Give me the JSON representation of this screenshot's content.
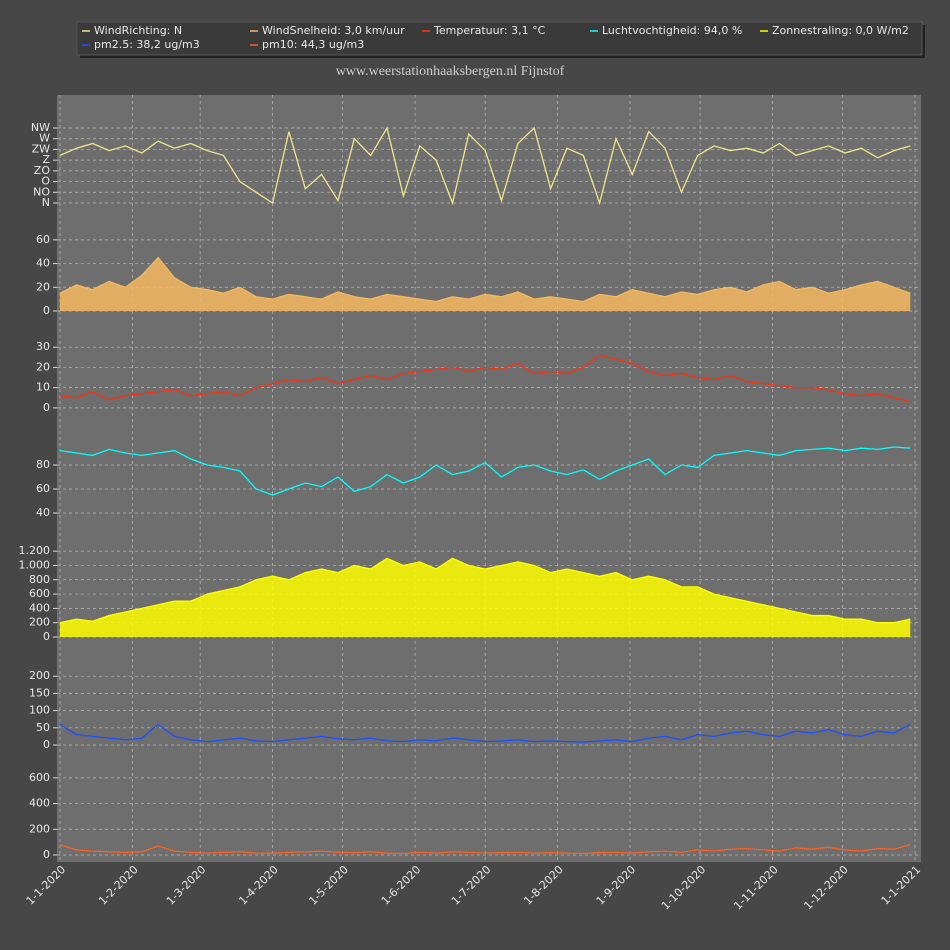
{
  "chart_data": {
    "type": "line",
    "title": "www.weerstationhaaksbergen.nl Fijnstof",
    "x": [
      "2020-01-01",
      "2020-01-08",
      "2020-01-15",
      "2020-01-22",
      "2020-01-29",
      "2020-02-05",
      "2020-02-12",
      "2020-02-19",
      "2020-02-26",
      "2020-03-04",
      "2020-03-11",
      "2020-03-18",
      "2020-03-25",
      "2020-04-01",
      "2020-04-08",
      "2020-04-15",
      "2020-04-22",
      "2020-04-29",
      "2020-05-06",
      "2020-05-13",
      "2020-05-20",
      "2020-05-27",
      "2020-06-03",
      "2020-06-10",
      "2020-06-17",
      "2020-06-24",
      "2020-07-01",
      "2020-07-08",
      "2020-07-15",
      "2020-07-22",
      "2020-07-29",
      "2020-08-05",
      "2020-08-12",
      "2020-08-19",
      "2020-08-26",
      "2020-09-02",
      "2020-09-09",
      "2020-09-16",
      "2020-09-23",
      "2020-09-30",
      "2020-10-07",
      "2020-10-14",
      "2020-10-21",
      "2020-10-28",
      "2020-11-04",
      "2020-11-11",
      "2020-11-18",
      "2020-11-25",
      "2020-12-02",
      "2020-12-09",
      "2020-12-16",
      "2020-12-23",
      "2020-12-30"
    ],
    "xlim": [
      "2020-01-01",
      "2021-01-01"
    ],
    "xticks": [
      {
        "value": "2020-01-01",
        "label": "1-1-2020"
      },
      {
        "value": "2020-02-01",
        "label": "1-2-2020"
      },
      {
        "value": "2020-03-01",
        "label": "1-3-2020"
      },
      {
        "value": "2020-04-01",
        "label": "1-4-2020"
      },
      {
        "value": "2020-05-01",
        "label": "1-5-2020"
      },
      {
        "value": "2020-06-01",
        "label": "1-6-2020"
      },
      {
        "value": "2020-07-01",
        "label": "1-7-2020"
      },
      {
        "value": "2020-08-01",
        "label": "1-8-2020"
      },
      {
        "value": "2020-09-01",
        "label": "1-9-2020"
      },
      {
        "value": "2020-10-01",
        "label": "1-10-2020"
      },
      {
        "value": "2020-11-01",
        "label": "1-11-2020"
      },
      {
        "value": "2020-12-01",
        "label": "1-12-2020"
      },
      {
        "value": "2021-01-01",
        "label": "1-1-2021"
      }
    ],
    "grid": true,
    "panels": [
      {
        "ylim": [
          0,
          315
        ],
        "yticks": [
          {
            "value": 0,
            "label": "N"
          },
          {
            "value": 45,
            "label": "NO"
          },
          {
            "value": 90,
            "label": "O"
          },
          {
            "value": 135,
            "label": "ZO"
          },
          {
            "value": 180,
            "label": "Z"
          },
          {
            "value": 225,
            "label": "ZW"
          },
          {
            "value": 270,
            "label": "W"
          },
          {
            "value": 315,
            "label": "NW"
          }
        ],
        "series": [
          {
            "name": "WindRichting: N",
            "color": "#f0e68c",
            "fill": false,
            "values": [
              200,
              230,
              250,
              220,
              240,
              210,
              260,
              230,
              250,
              220,
              200,
              90,
              45,
              0,
              300,
              60,
              120,
              10,
              270,
              200,
              315,
              30,
              240,
              180,
              0,
              290,
              220,
              10,
              250,
              315,
              60,
              230,
              200,
              0,
              270,
              120,
              300,
              230,
              45,
              200,
              240,
              220,
              230,
              210,
              250,
              200,
              220,
              240,
              210,
              230,
              190,
              220,
              240
            ]
          }
        ]
      },
      {
        "ylim": [
          0,
          70
        ],
        "yticks": [
          0,
          20,
          40,
          60
        ],
        "series": [
          {
            "name": "WindSnelheid: 3,0 km/uur",
            "color": "#f4b860",
            "fill": true,
            "values": [
              15,
              22,
              18,
              25,
              20,
              30,
              45,
              28,
              20,
              18,
              15,
              20,
              12,
              10,
              14,
              12,
              10,
              16,
              12,
              10,
              14,
              12,
              10,
              8,
              12,
              10,
              14,
              12,
              16,
              10,
              12,
              10,
              8,
              14,
              12,
              18,
              15,
              12,
              16,
              14,
              18,
              20,
              16,
              22,
              25,
              18,
              20,
              15,
              18,
              22,
              25,
              20,
              15
            ]
          }
        ]
      },
      {
        "ylim": [
          -5,
          38
        ],
        "yticks": [
          0,
          10,
          20,
          30
        ],
        "series": [
          {
            "name": "Temperatuur: 3,1 °C",
            "color": "#ff3010",
            "fill": false,
            "values": [
              6,
              5,
              8,
              4,
              6,
              7,
              8,
              9,
              6,
              7,
              8,
              6,
              10,
              12,
              14,
              13,
              15,
              12,
              14,
              16,
              14,
              17,
              18,
              19,
              20,
              18,
              20,
              19,
              22,
              17,
              18,
              17,
              20,
              26,
              24,
              22,
              18,
              16,
              17,
              15,
              14,
              16,
              13,
              12,
              11,
              10,
              10,
              9,
              7,
              6,
              7,
              5,
              3
            ]
          }
        ]
      },
      {
        "ylim": [
          30,
          100
        ],
        "yticks": [
          40,
          60,
          80
        ],
        "series": [
          {
            "name": "Luchtvochtigheid: 94,0 %",
            "color": "#00ffff",
            "fill": false,
            "values": [
              92,
              90,
              88,
              93,
              90,
              88,
              90,
              92,
              85,
              80,
              78,
              75,
              60,
              55,
              60,
              65,
              62,
              70,
              58,
              62,
              72,
              65,
              70,
              80,
              72,
              75,
              82,
              70,
              78,
              80,
              75,
              72,
              76,
              68,
              75,
              80,
              85,
              72,
              80,
              78,
              88,
              90,
              92,
              90,
              88,
              92,
              93,
              94,
              92,
              94,
              93,
              95,
              94
            ]
          }
        ]
      },
      {
        "ylim": [
          0,
          1300
        ],
        "yticks": [
          0,
          200,
          400,
          600,
          800,
          {
            "value": 1000,
            "label": "1.000"
          },
          {
            "value": 1200,
            "label": "1.200"
          }
        ],
        "series": [
          {
            "name": "Zonnestraling: 0,0 W/m2",
            "color": "#ffff00",
            "fill": true,
            "values": [
              200,
              250,
              220,
              300,
              350,
              400,
              450,
              500,
              500,
              600,
              650,
              700,
              800,
              850,
              800,
              900,
              950,
              900,
              1000,
              950,
              1100,
              1000,
              1050,
              950,
              1100,
              1000,
              950,
              1000,
              1050,
              1000,
              900,
              950,
              900,
              850,
              900,
              800,
              850,
              800,
              700,
              700,
              600,
              550,
              500,
              450,
              400,
              350,
              300,
              300,
              250,
              250,
              200,
              200,
              250
            ]
          }
        ]
      },
      {
        "ylim": [
          0,
          250
        ],
        "yticks": [
          0,
          50,
          100,
          150,
          200
        ],
        "series": [
          {
            "name": "pm2.5: 38,2 ug/m3",
            "color": "#1e50ff",
            "fill": false,
            "values": [
              60,
              30,
              25,
              20,
              15,
              20,
              60,
              25,
              15,
              10,
              15,
              20,
              12,
              10,
              15,
              20,
              25,
              18,
              15,
              20,
              12,
              10,
              15,
              12,
              20,
              15,
              10,
              12,
              15,
              10,
              12,
              10,
              8,
              12,
              15,
              10,
              20,
              25,
              15,
              30,
              25,
              35,
              40,
              30,
              25,
              40,
              35,
              45,
              30,
              25,
              40,
              35,
              60
            ]
          }
        ]
      },
      {
        "ylim": [
          0,
          700
        ],
        "yticks": [
          0,
          200,
          400,
          600
        ],
        "series": [
          {
            "name": "pm10: 44,3 ug/m3",
            "color": "#ff6020",
            "fill": false,
            "values": [
              80,
              40,
              30,
              25,
              20,
              25,
              70,
              30,
              20,
              15,
              20,
              25,
              15,
              15,
              20,
              25,
              30,
              22,
              18,
              25,
              15,
              12,
              20,
              15,
              25,
              20,
              15,
              18,
              20,
              15,
              18,
              15,
              12,
              18,
              20,
              15,
              25,
              30,
              20,
              40,
              30,
              45,
              50,
              40,
              30,
              55,
              45,
              60,
              40,
              30,
              50,
              45,
              80
            ]
          }
        ]
      }
    ]
  }
}
